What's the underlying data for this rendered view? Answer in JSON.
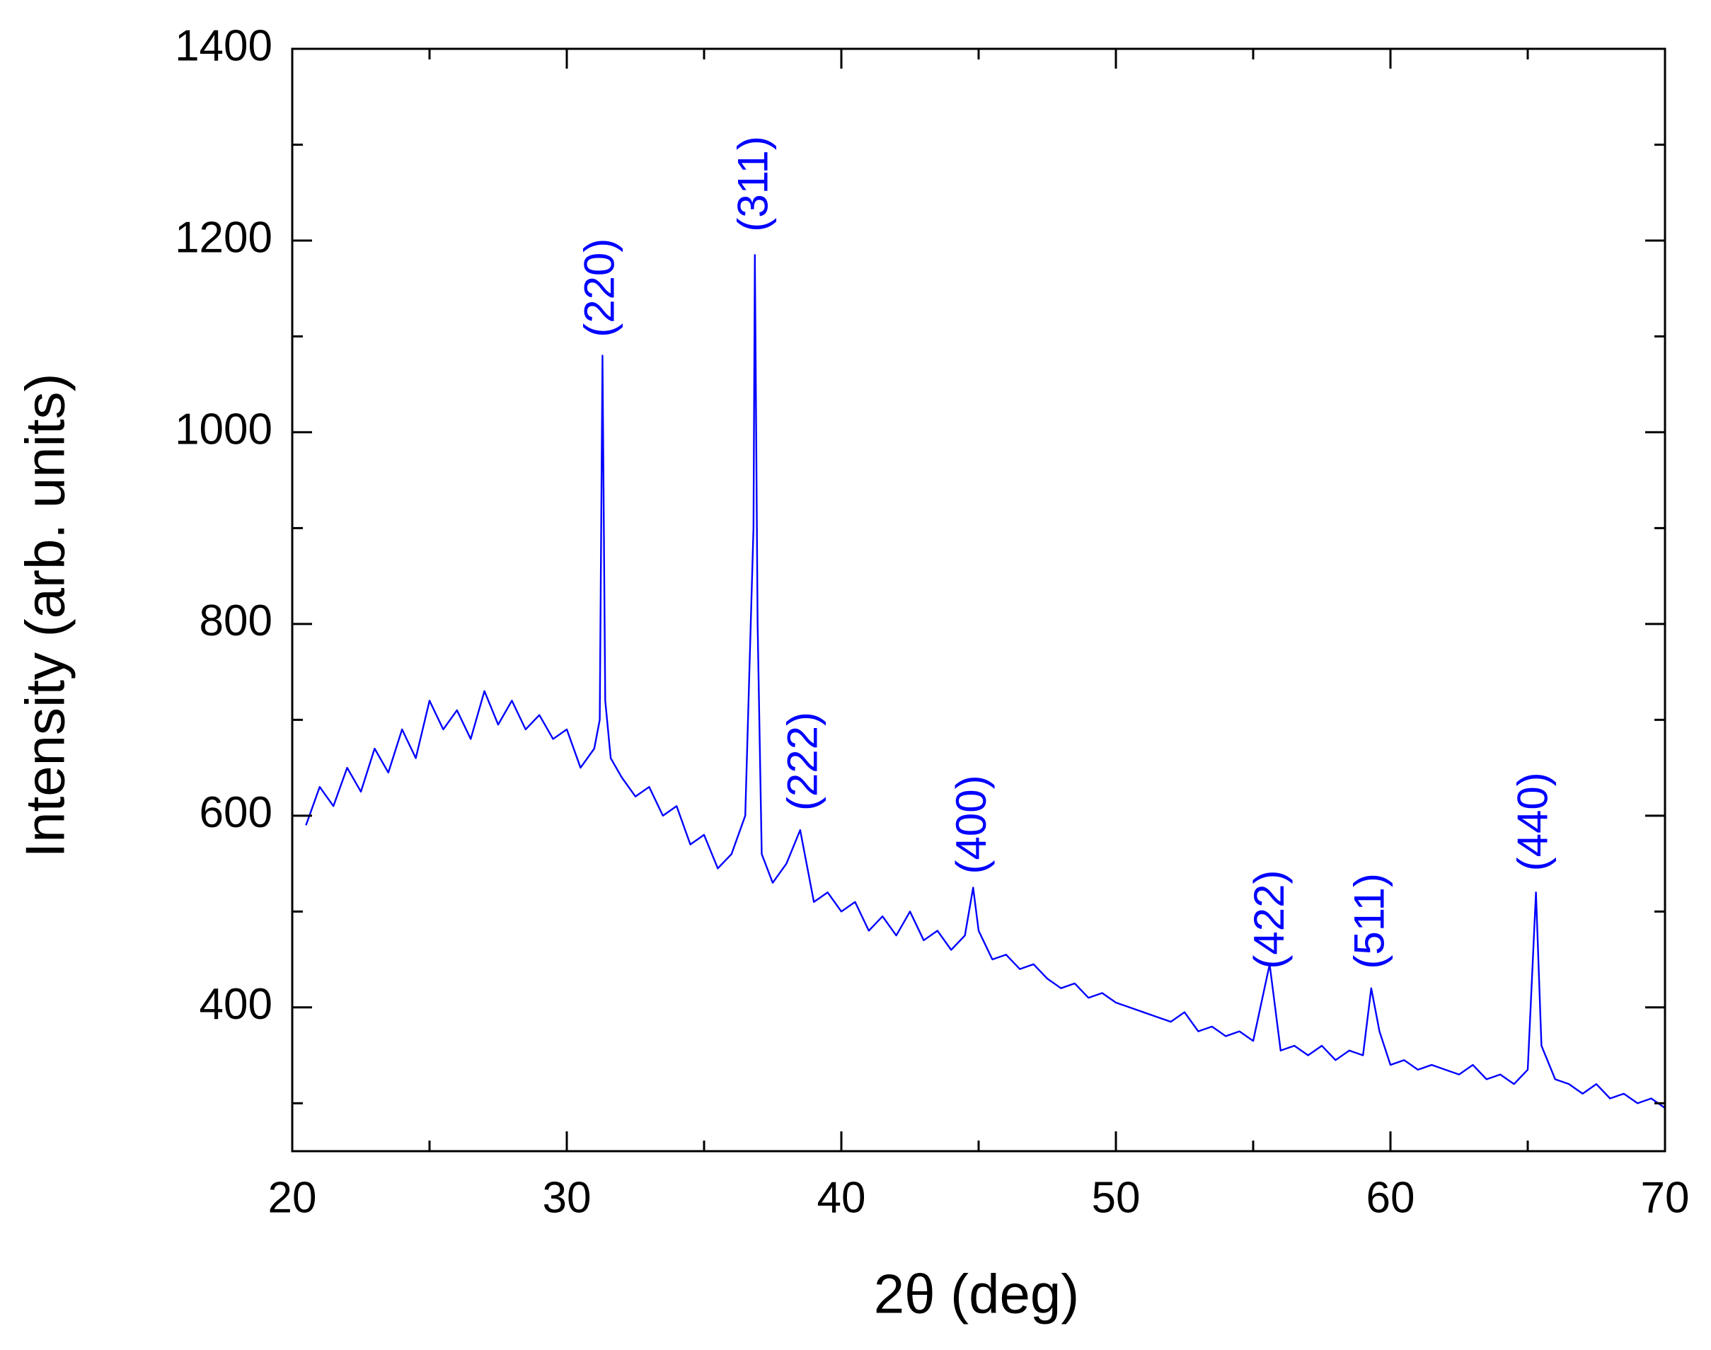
{
  "chart_data": {
    "type": "line",
    "x_label": "2θ (deg)",
    "y_label": "Intensity (arb. units)",
    "x": [
      20.5,
      21,
      21.5,
      22,
      22.5,
      23,
      23.5,
      24,
      24.5,
      25,
      25.5,
      26,
      26.5,
      27,
      27.5,
      28,
      28.5,
      29,
      29.5,
      30,
      30.5,
      31,
      31.2,
      31.3,
      31.4,
      31.6,
      32,
      32.5,
      33,
      33.5,
      34,
      34.5,
      35,
      35.5,
      36,
      36.5,
      36.8,
      36.85,
      36.95,
      37.1,
      37.5,
      38,
      38.5,
      39,
      39.5,
      40,
      40.5,
      41,
      41.5,
      42,
      42.5,
      43,
      43.5,
      44,
      44.5,
      44.8,
      45,
      45.5,
      46,
      46.5,
      47,
      47.5,
      48,
      48.5,
      49,
      49.5,
      50,
      50.5,
      51,
      51.5,
      52,
      52.5,
      53,
      53.5,
      54,
      54.5,
      55,
      55.6,
      56,
      56.5,
      57,
      57.5,
      58,
      58.5,
      59,
      59.3,
      59.6,
      60,
      60.5,
      61,
      61.5,
      62,
      62.5,
      63,
      63.5,
      64,
      64.5,
      65,
      65.3,
      65.5,
      66,
      66.5,
      67,
      67.5,
      68,
      68.5,
      69,
      69.5,
      70
    ],
    "series": [
      {
        "color": "#0000ff",
        "values": [
          590,
          630,
          610,
          650,
          625,
          670,
          645,
          690,
          660,
          720,
          690,
          710,
          680,
          730,
          695,
          720,
          690,
          705,
          680,
          690,
          650,
          670,
          700,
          1080,
          720,
          660,
          640,
          620,
          630,
          600,
          610,
          570,
          580,
          545,
          560,
          600,
          900,
          1185,
          800,
          560,
          530,
          550,
          585,
          510,
          520,
          500,
          510,
          480,
          495,
          475,
          500,
          470,
          480,
          460,
          475,
          525,
          480,
          450,
          455,
          440,
          445,
          430,
          420,
          425,
          410,
          415,
          405,
          400,
          395,
          390,
          385,
          395,
          375,
          380,
          370,
          375,
          365,
          445,
          355,
          360,
          350,
          360,
          345,
          355,
          350,
          420,
          375,
          340,
          345,
          335,
          340,
          335,
          330,
          340,
          325,
          330,
          320,
          335,
          520,
          360,
          325,
          320,
          310,
          320,
          305,
          310,
          300,
          305,
          295
        ]
      }
    ],
    "annotations": [
      {
        "text": "(220)",
        "x": 31.3,
        "y": 1099
      },
      {
        "text": "(311)",
        "x": 36.9,
        "y": 1209
      },
      {
        "text": "(222)",
        "x": 38.7,
        "y": 605
      },
      {
        "text": "(400)",
        "x": 44.85,
        "y": 539
      },
      {
        "text": "(422)",
        "x": 55.7,
        "y": 440
      },
      {
        "text": "(511)",
        "x": 59.35,
        "y": 440
      },
      {
        "text": "(440)",
        "x": 65.3,
        "y": 542
      }
    ],
    "xlim": [
      20,
      70
    ],
    "xticks": [
      20,
      30,
      40,
      50,
      60,
      70
    ],
    "xminorticks": [
      25,
      35,
      45,
      55,
      65
    ],
    "ylim": [
      250,
      1400
    ],
    "yticks": [
      400,
      600,
      800,
      1000,
      1200,
      1400
    ],
    "yminorticks": [
      300,
      500,
      700,
      900,
      1100,
      1300
    ],
    "annotation_color": "#0000ff",
    "mirror_ticks": true
  }
}
